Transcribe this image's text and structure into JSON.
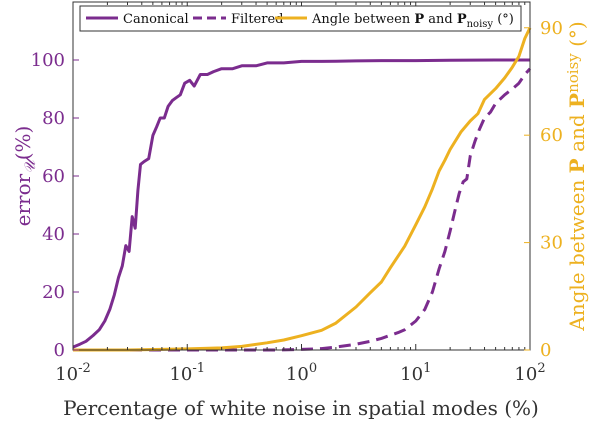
{
  "colors": {
    "purple": "#7B2C8E",
    "yellow": "#EDB120",
    "axis": "#333333"
  },
  "chart_data": {
    "type": "line",
    "xscale": "log",
    "xlim": [
      0.01,
      100
    ],
    "ylim_left": [
      0,
      120
    ],
    "ylim_right": [
      0,
      97.2
    ],
    "xlabel": "Percentage of white noise in spatial modes (%)",
    "ylabel_left": "error𝒰(%)",
    "ylabel_right": "Angle between P and Pnoisy (°)",
    "x_ticks": [
      {
        "base": "10",
        "exp": "-2",
        "value": 0.01
      },
      {
        "base": "10",
        "exp": "-1",
        "value": 0.1
      },
      {
        "base": "10",
        "exp": "0",
        "value": 1
      },
      {
        "base": "10",
        "exp": "1",
        "value": 10
      },
      {
        "base": "10",
        "exp": "2",
        "value": 100
      }
    ],
    "y_left_ticks": [
      "0",
      "20",
      "40",
      "60",
      "80",
      "100"
    ],
    "y_right_ticks": [
      "0",
      "30",
      "60",
      "90"
    ],
    "legend": {
      "placement": "top",
      "entries": [
        {
          "label": "Canonical",
          "style": "solid",
          "color": "#7B2C8E"
        },
        {
          "label": "Filtered",
          "style": "dashed",
          "color": "#7B2C8E"
        },
        {
          "label_pre": "Angle between ",
          "label_b1": "P",
          "label_mid": " and ",
          "label_b2": "P",
          "label_sub": "noisy",
          "label_post": "  (°)",
          "style": "solid",
          "color": "#EDB120"
        }
      ]
    },
    "series": [
      {
        "name": "Canonical",
        "axis": "left",
        "color": "#7B2C8E",
        "style": "solid",
        "x": [
          0.01,
          0.0115,
          0.013,
          0.015,
          0.017,
          0.019,
          0.021,
          0.023,
          0.025,
          0.027,
          0.029,
          0.031,
          0.033,
          0.035,
          0.037,
          0.039,
          0.042,
          0.046,
          0.05,
          0.054,
          0.058,
          0.063,
          0.068,
          0.074,
          0.08,
          0.087,
          0.095,
          0.105,
          0.115,
          0.13,
          0.15,
          0.17,
          0.2,
          0.25,
          0.3,
          0.4,
          0.5,
          0.7,
          1,
          1.5,
          2,
          3,
          5,
          10,
          20,
          50,
          100
        ],
        "y": [
          1,
          2,
          3,
          5,
          7,
          10,
          14,
          19,
          25,
          29,
          36,
          34,
          46,
          42,
          55,
          64,
          65,
          66,
          74,
          77,
          80,
          80,
          84,
          86,
          87,
          88,
          92,
          93,
          91,
          95,
          95,
          96,
          97,
          97,
          98,
          98,
          99,
          99,
          99.5,
          99.5,
          99.6,
          99.7,
          99.8,
          99.8,
          99.9,
          100,
          100
        ]
      },
      {
        "name": "Filtered",
        "axis": "left",
        "color": "#7B2C8E",
        "style": "dashed",
        "x": [
          0.01,
          0.1,
          0.3,
          0.6,
          1,
          1.5,
          2,
          3,
          4,
          5,
          7,
          8,
          10,
          12,
          14,
          16,
          18,
          20,
          22,
          24,
          26,
          28,
          30,
          33,
          36,
          40,
          45,
          50,
          60,
          70,
          80,
          90,
          100
        ],
        "y": [
          0,
          0,
          0,
          0,
          0.2,
          0.5,
          1,
          2,
          3,
          4,
          6,
          7,
          10,
          14,
          20,
          28,
          34,
          41,
          48,
          54,
          58,
          59,
          67,
          72,
          76,
          80,
          82,
          85,
          88,
          90,
          92,
          95,
          97
        ]
      },
      {
        "name": "Angle between P and Pnoisy",
        "axis": "right",
        "color": "#EDB120",
        "style": "solid",
        "x": [
          0.01,
          0.03,
          0.1,
          0.2,
          0.3,
          0.5,
          0.7,
          1,
          1.5,
          2,
          3,
          4,
          5,
          6,
          8,
          10,
          12,
          14,
          16,
          18,
          20,
          25,
          30,
          35,
          40,
          50,
          60,
          70,
          80,
          90,
          100
        ],
        "y": [
          0,
          0,
          0.3,
          0.6,
          1,
          2,
          2.8,
          4,
          5.5,
          7.5,
          12,
          16,
          19,
          23,
          29,
          35,
          40,
          45,
          50,
          53,
          56,
          61,
          64,
          66,
          70,
          73,
          76,
          79,
          82,
          87,
          90
        ]
      }
    ]
  }
}
